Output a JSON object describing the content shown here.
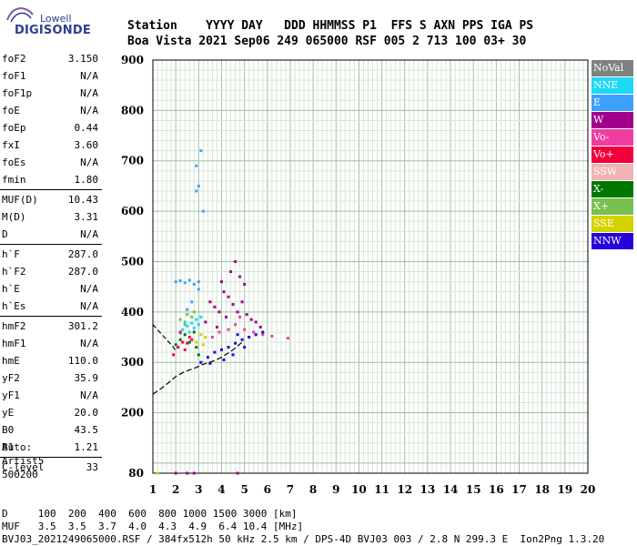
{
  "logo": {
    "name": "Lowell",
    "brand": "DIGISONDE"
  },
  "header": {
    "labels": "Station    YYYY DAY   DDD HHMMSS P1  FFS S AXN PPS IGA PS",
    "values": "Boa Vista 2021 Sep06 249 065000 RSF 005 2 713 100 03+ 30"
  },
  "params_group1": [
    {
      "label": "foF2",
      "value": "3.150"
    },
    {
      "label": "foF1",
      "value": "N/A"
    },
    {
      "label": "foF1p",
      "value": "N/A"
    },
    {
      "label": "foE",
      "value": "N/A"
    },
    {
      "label": "foEp",
      "value": "0.44"
    },
    {
      "label": "fxI",
      "value": "3.60"
    },
    {
      "label": "foEs",
      "value": "N/A"
    },
    {
      "label": "fmin",
      "value": "1.80"
    }
  ],
  "params_group2": [
    {
      "label": "MUF(D)",
      "value": "10.43"
    },
    {
      "label": "M(D)",
      "value": "3.31"
    },
    {
      "label": "D",
      "value": "N/A"
    }
  ],
  "params_group3": [
    {
      "label": "h`F",
      "value": "287.0"
    },
    {
      "label": "h`F2",
      "value": "287.0"
    },
    {
      "label": "h`E",
      "value": "N/A"
    },
    {
      "label": "h`Es",
      "value": "N/A"
    }
  ],
  "params_group4": [
    {
      "label": "hmF2",
      "value": "301.2"
    },
    {
      "label": "hmF1",
      "value": "N/A"
    },
    {
      "label": "hmE",
      "value": "110.0"
    },
    {
      "label": "yF2",
      "value": "35.9"
    },
    {
      "label": "yF1",
      "value": "N/A"
    },
    {
      "label": "yE",
      "value": "20.0"
    },
    {
      "label": "B0",
      "value": "43.5"
    },
    {
      "label": "B1",
      "value": "1.21"
    }
  ],
  "params_group5": [
    {
      "label": "C-level",
      "value": "33"
    }
  ],
  "auto": {
    "line1": "Auto:",
    "line2": "Artist5",
    "line3": "500200"
  },
  "legend": [
    {
      "label": "NoVal",
      "color": "#808080"
    },
    {
      "label": "NNE",
      "color": "#1ed7f5"
    },
    {
      "label": "E",
      "color": "#3ca0ff"
    },
    {
      "label": "W",
      "color": "#a0008c"
    },
    {
      "label": "Vo-",
      "color": "#f03ca0"
    },
    {
      "label": "Vo+",
      "color": "#f0003c"
    },
    {
      "label": "SSW",
      "color": "#f0b4b4"
    },
    {
      "label": "X-",
      "color": "#007800"
    },
    {
      "label": "X+",
      "color": "#78c050"
    },
    {
      "label": "SSE",
      "color": "#d2d200"
    },
    {
      "label": "NNW",
      "color": "#2800dc"
    }
  ],
  "footer": {
    "line1": "D     100  200  400  600  800 1000 1500 3000 [km]",
    "line2": "MUF   3.5  3.5  3.7  4.0  4.3  4.9  6.4 10.4 [MHz]",
    "line3": "BVJ03_2021249065000.RSF / 384fx512h 50 kHz 2.5 km / DPS-4D BVJ03 003 / 2.8 N 299.3 E  Ion2Png 1.3.20"
  },
  "chart_data": {
    "type": "scatter",
    "title": "",
    "xlabel": "",
    "ylabel": "",
    "xlim": [
      1,
      20
    ],
    "ylim": [
      80,
      900
    ],
    "x_ticks": [
      1,
      2,
      3,
      4,
      5,
      6,
      7,
      8,
      9,
      10,
      11,
      12,
      13,
      14,
      15,
      16,
      17,
      18,
      19,
      20
    ],
    "y_ticks": [
      80,
      200,
      300,
      400,
      500,
      600,
      700,
      800,
      900
    ],
    "grid": true,
    "legend_position": "right",
    "series": [
      {
        "name": "E",
        "color": "#3ca0ff",
        "values": [
          [
            2.0,
            460
          ],
          [
            2.2,
            462
          ],
          [
            2.4,
            458
          ],
          [
            2.6,
            463
          ],
          [
            2.8,
            455
          ],
          [
            3.0,
            460
          ],
          [
            2.9,
            690
          ],
          [
            3.0,
            650
          ],
          [
            3.1,
            720
          ],
          [
            2.9,
            640
          ],
          [
            3.2,
            600
          ],
          [
            2.7,
            420
          ],
          [
            3.0,
            445
          ],
          [
            2.5,
            405
          ]
        ]
      },
      {
        "name": "NNE",
        "color": "#1ed7f5",
        "values": [
          [
            2.3,
            365
          ],
          [
            2.5,
            372
          ],
          [
            2.7,
            378
          ],
          [
            2.9,
            385
          ],
          [
            3.1,
            390
          ],
          [
            2.4,
            380
          ],
          [
            2.6,
            360
          ],
          [
            2.8,
            368
          ],
          [
            3.0,
            375
          ],
          [
            2.2,
            358
          ]
        ]
      },
      {
        "name": "W",
        "color": "#a0008c",
        "values": [
          [
            3.3,
            380
          ],
          [
            3.5,
            420
          ],
          [
            3.7,
            410
          ],
          [
            3.9,
            400
          ],
          [
            4.1,
            440
          ],
          [
            4.3,
            430
          ],
          [
            4.5,
            415
          ],
          [
            4.7,
            400
          ],
          [
            4.9,
            420
          ],
          [
            5.1,
            395
          ],
          [
            5.3,
            385
          ],
          [
            5.5,
            380
          ],
          [
            5.7,
            370
          ],
          [
            4.0,
            460
          ],
          [
            4.4,
            480
          ],
          [
            4.6,
            500
          ],
          [
            4.8,
            470
          ],
          [
            5.0,
            455
          ],
          [
            4.2,
            390
          ],
          [
            3.8,
            370
          ],
          [
            2.0,
            80
          ],
          [
            2.5,
            80
          ],
          [
            2.8,
            80
          ],
          [
            4.7,
            80
          ]
        ]
      },
      {
        "name": "Vo-",
        "color": "#f03ca0",
        "values": [
          [
            3.6,
            350
          ],
          [
            3.9,
            360
          ],
          [
            4.3,
            365
          ],
          [
            4.6,
            375
          ],
          [
            5.0,
            365
          ],
          [
            5.4,
            360
          ],
          [
            5.8,
            355
          ],
          [
            6.2,
            352
          ],
          [
            6.9,
            348
          ],
          [
            4.8,
            390
          ]
        ]
      },
      {
        "name": "Vo+",
        "color": "#f0003c",
        "values": [
          [
            1.9,
            315
          ],
          [
            2.1,
            330
          ],
          [
            2.3,
            340
          ],
          [
            2.5,
            338
          ],
          [
            2.7,
            345
          ],
          [
            2.2,
            360
          ],
          [
            2.4,
            325
          ],
          [
            2.6,
            350
          ]
        ]
      },
      {
        "name": "X-",
        "color": "#007800",
        "values": [
          [
            2.0,
            335
          ],
          [
            2.2,
            345
          ],
          [
            2.4,
            355
          ],
          [
            2.6,
            340
          ],
          [
            2.8,
            360
          ],
          [
            2.9,
            330
          ],
          [
            3.0,
            315
          ]
        ]
      },
      {
        "name": "X+",
        "color": "#78c050",
        "values": [
          [
            2.2,
            385
          ],
          [
            2.5,
            395
          ],
          [
            2.8,
            400
          ],
          [
            2.4,
            375
          ],
          [
            2.7,
            390
          ]
        ]
      },
      {
        "name": "SSE",
        "color": "#d2d200",
        "values": [
          [
            2.9,
            340
          ],
          [
            3.1,
            355
          ],
          [
            3.3,
            350
          ],
          [
            3.2,
            335
          ],
          [
            1.2,
            80
          ]
        ]
      },
      {
        "name": "NNW",
        "color": "#2800dc",
        "values": [
          [
            3.1,
            300
          ],
          [
            3.4,
            310
          ],
          [
            3.7,
            320
          ],
          [
            4.0,
            325
          ],
          [
            4.3,
            330
          ],
          [
            4.6,
            338
          ],
          [
            4.9,
            345
          ],
          [
            5.2,
            350
          ],
          [
            5.5,
            355
          ],
          [
            5.8,
            360
          ],
          [
            4.1,
            305
          ],
          [
            4.5,
            315
          ],
          [
            3.5,
            298
          ],
          [
            4.7,
            355
          ],
          [
            5.0,
            330
          ]
        ]
      }
    ],
    "virtual_height_curve": [
      [
        1,
        237
      ],
      [
        1.3,
        246
      ],
      [
        1.7,
        260
      ],
      [
        2.0,
        272
      ],
      [
        2.4,
        282
      ],
      [
        2.8,
        288
      ],
      [
        3.2,
        296
      ],
      [
        3.6,
        302
      ],
      [
        4.0,
        310
      ],
      [
        4.5,
        325
      ],
      [
        4.9,
        340
      ]
    ],
    "lower_curve": [
      [
        1,
        375
      ],
      [
        1.3,
        360
      ],
      [
        1.5,
        350
      ],
      [
        1.7,
        340
      ],
      [
        1.9,
        330
      ],
      [
        2.0,
        322
      ]
    ]
  }
}
